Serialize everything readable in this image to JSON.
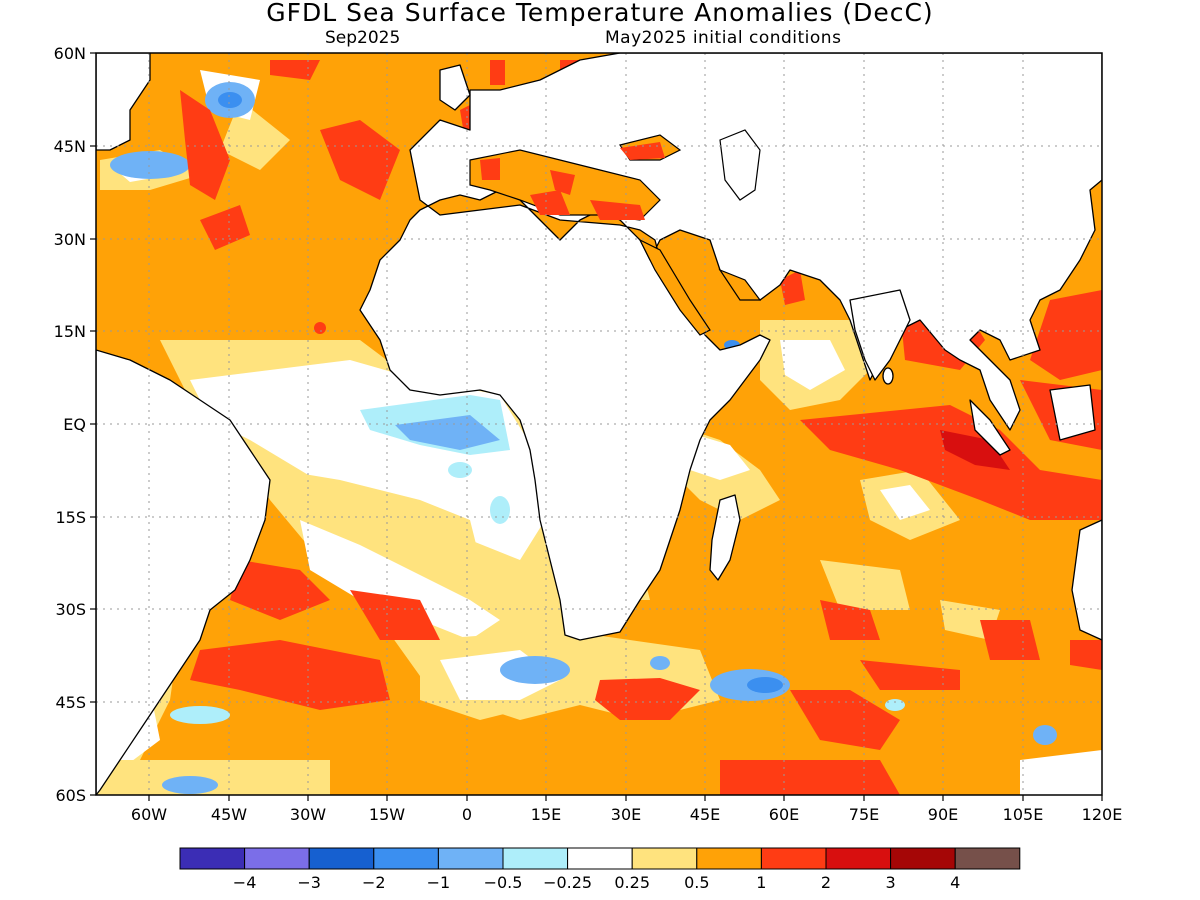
{
  "title": "GFDL Sea Surface Temperature Anomalies (DecC)",
  "subtitle_left": "Sep2025",
  "subtitle_right": "May2025 initial conditions",
  "lat_labels": [
    "60N",
    "45N",
    "30N",
    "15N",
    "EQ",
    "15S",
    "30S",
    "45S",
    "60S"
  ],
  "lon_labels": [
    "60W",
    "45W",
    "30W",
    "15W",
    "0",
    "15E",
    "30E",
    "45E",
    "60E",
    "75E",
    "90E",
    "105E",
    "120E"
  ],
  "colorbar": {
    "colors": [
      "#3b2db5",
      "#7b6ee8",
      "#1660d0",
      "#3b8ff0",
      "#6fb2f6",
      "#aeeefa",
      "#ffffff",
      "#ffe37e",
      "#ffa207",
      "#ff3c14",
      "#d80f0f",
      "#a50606",
      "#76504a"
    ],
    "labels": [
      "-4",
      "-3",
      "-2",
      "-1",
      "-0.5",
      "-0.25",
      "0.25",
      "0.5",
      "1",
      "2",
      "3",
      "4"
    ]
  },
  "colors": {
    "land": "#ffffff",
    "coast": "#000000",
    "grid": "#9a9a9a"
  }
}
